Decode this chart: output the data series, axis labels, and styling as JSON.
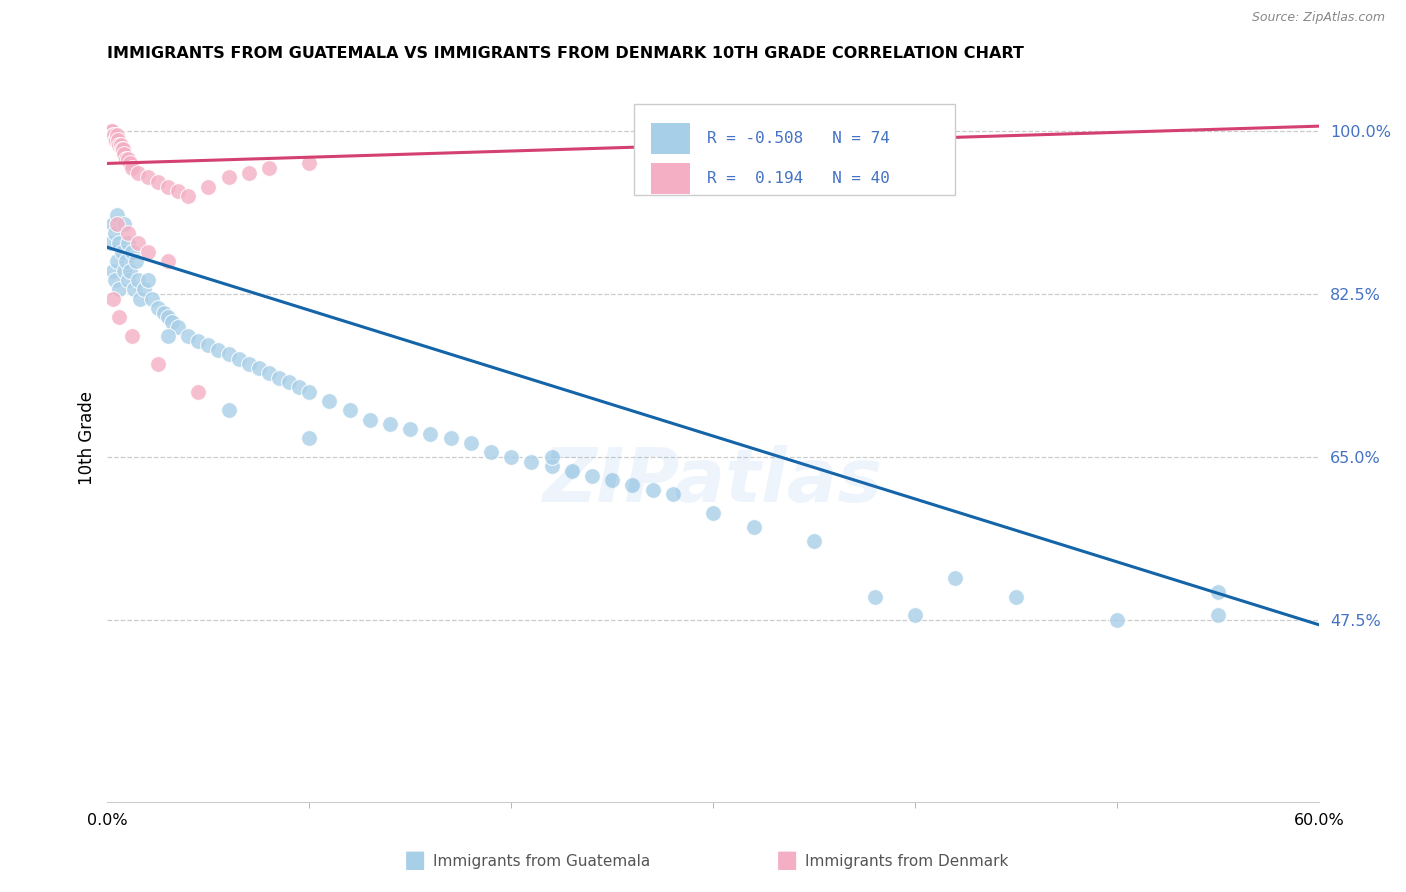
{
  "title": "IMMIGRANTS FROM GUATEMALA VS IMMIGRANTS FROM DENMARK 10TH GRADE CORRELATION CHART",
  "source": "Source: ZipAtlas.com",
  "ylabel": "10th Grade",
  "yticks": [
    47.5,
    65.0,
    82.5,
    100.0
  ],
  "ytick_labels": [
    "47.5%",
    "65.0%",
    "82.5%",
    "100.0%"
  ],
  "watermark": "ZIPatlas",
  "guatemala_color": "#a8cfe8",
  "denmark_color": "#f4afc4",
  "guatemala_line_color": "#1464a8",
  "denmark_line_color": "#d44070",
  "xlim": [
    0.0,
    60.0
  ],
  "ylim": [
    28.0,
    106.0
  ],
  "xpct_left": "0.0%",
  "xpct_right": "60.0%",
  "blue_line": [
    [
      0.0,
      87.5
    ],
    [
      60.0,
      47.0
    ]
  ],
  "pink_line": [
    [
      0.0,
      96.5
    ],
    [
      60.0,
      100.5
    ]
  ],
  "guatemala_x": [
    0.2,
    0.3,
    0.3,
    0.4,
    0.4,
    0.5,
    0.5,
    0.6,
    0.6,
    0.7,
    0.8,
    0.8,
    0.9,
    1.0,
    1.0,
    1.1,
    1.2,
    1.3,
    1.4,
    1.5,
    1.6,
    1.8,
    2.0,
    2.2,
    2.5,
    2.8,
    3.0,
    3.2,
    3.5,
    4.0,
    4.5,
    5.0,
    5.5,
    6.0,
    6.5,
    7.0,
    7.5,
    8.0,
    8.5,
    9.0,
    9.5,
    10.0,
    11.0,
    12.0,
    13.0,
    14.0,
    15.0,
    16.0,
    17.0,
    18.0,
    19.0,
    20.0,
    21.0,
    22.0,
    23.0,
    24.0,
    25.0,
    26.0,
    27.0,
    28.0,
    30.0,
    32.0,
    35.0,
    38.0,
    40.0,
    42.0,
    45.0,
    50.0,
    55.0,
    55.0,
    3.0,
    6.0,
    10.0,
    22.0
  ],
  "guatemala_y": [
    88.0,
    90.0,
    85.0,
    89.0,
    84.0,
    91.0,
    86.0,
    88.0,
    83.0,
    87.0,
    85.0,
    90.0,
    86.0,
    84.0,
    88.0,
    85.0,
    87.0,
    83.0,
    86.0,
    84.0,
    82.0,
    83.0,
    84.0,
    82.0,
    81.0,
    80.5,
    80.0,
    79.5,
    79.0,
    78.0,
    77.5,
    77.0,
    76.5,
    76.0,
    75.5,
    75.0,
    74.5,
    74.0,
    73.5,
    73.0,
    72.5,
    72.0,
    71.0,
    70.0,
    69.0,
    68.5,
    68.0,
    67.5,
    67.0,
    66.5,
    65.5,
    65.0,
    64.5,
    64.0,
    63.5,
    63.0,
    62.5,
    62.0,
    61.5,
    61.0,
    59.0,
    57.5,
    56.0,
    50.0,
    48.0,
    52.0,
    50.0,
    47.5,
    50.5,
    48.0,
    78.0,
    70.0,
    67.0,
    65.0
  ],
  "denmark_x": [
    0.1,
    0.15,
    0.2,
    0.25,
    0.3,
    0.35,
    0.4,
    0.45,
    0.5,
    0.55,
    0.6,
    0.65,
    0.7,
    0.75,
    0.8,
    0.9,
    1.0,
    1.1,
    1.2,
    1.5,
    2.0,
    2.5,
    3.0,
    3.5,
    4.0,
    5.0,
    6.0,
    7.0,
    8.0,
    10.0,
    0.5,
    1.0,
    1.5,
    2.0,
    3.0,
    0.3,
    0.6,
    1.2,
    2.5,
    4.5
  ],
  "denmark_y": [
    100.0,
    100.0,
    100.0,
    100.0,
    99.5,
    99.5,
    99.0,
    99.0,
    99.5,
    99.0,
    98.5,
    98.5,
    98.0,
    98.0,
    97.5,
    97.0,
    97.0,
    96.5,
    96.0,
    95.5,
    95.0,
    94.5,
    94.0,
    93.5,
    93.0,
    94.0,
    95.0,
    95.5,
    96.0,
    96.5,
    90.0,
    89.0,
    88.0,
    87.0,
    86.0,
    82.0,
    80.0,
    78.0,
    75.0,
    72.0
  ]
}
